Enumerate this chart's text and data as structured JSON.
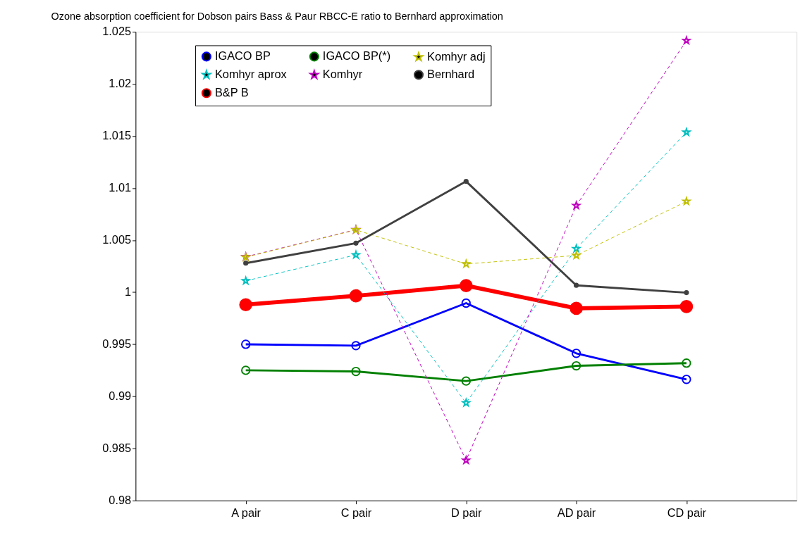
{
  "chart_data": {
    "type": "line",
    "title": "Ozone absorption coefficient for Dobson pairs  Bass & Paur RBCC-E ratio to Bernhard approximation",
    "categories": [
      "A pair",
      "C pair",
      "D pair",
      "AD pair",
      "CD pair"
    ],
    "ylim": [
      0.98,
      1.025
    ],
    "yticks": [
      0.98,
      0.985,
      0.99,
      0.995,
      1,
      1.005,
      1.01,
      1.015,
      1.02,
      1.025
    ],
    "grid": false,
    "legend": "top",
    "series": [
      {
        "name": "IGACO BP",
        "color": "#0000ff",
        "marker": "circle",
        "line_style": "solid",
        "values": [
          0.995,
          0.99487,
          0.99895,
          0.99413,
          0.99163
        ]
      },
      {
        "name": "IGACO BP(*)",
        "color": "#008000",
        "marker": "circle",
        "line_style": "solid",
        "values": [
          0.9925,
          0.99239,
          0.99147,
          0.99293,
          0.99319
        ]
      },
      {
        "name": "B&P B",
        "color": "#ff0000",
        "marker": "circle",
        "line_style": "solid",
        "values": [
          0.9988,
          0.99965,
          1.00063,
          0.99845,
          0.99862
        ]
      },
      {
        "name": "Komhyr aprox",
        "color": "#00bfbf",
        "marker": "star",
        "line_style": "dashed",
        "values": [
          1.00109,
          1.00358,
          0.98937,
          1.00418,
          1.01536
        ]
      },
      {
        "name": "Komhyr",
        "color": "#bf00bf",
        "marker": "star",
        "line_style": "dashed",
        "values": [
          1.0034,
          1.006,
          0.98386,
          1.00832,
          1.02416
        ]
      },
      {
        "name": "Komhyr adj",
        "color": "#bfbf00",
        "marker": "star",
        "line_style": "dashed",
        "values": [
          1.00336,
          1.00598,
          1.00271,
          1.00353,
          1.00872
        ]
      },
      {
        "name": "Bernhard",
        "color": "#404040",
        "marker": "circle",
        "line_style": "solid",
        "values": [
          1.00279,
          1.00471,
          1.01064,
          1.00066,
          0.99996
        ]
      }
    ]
  }
}
